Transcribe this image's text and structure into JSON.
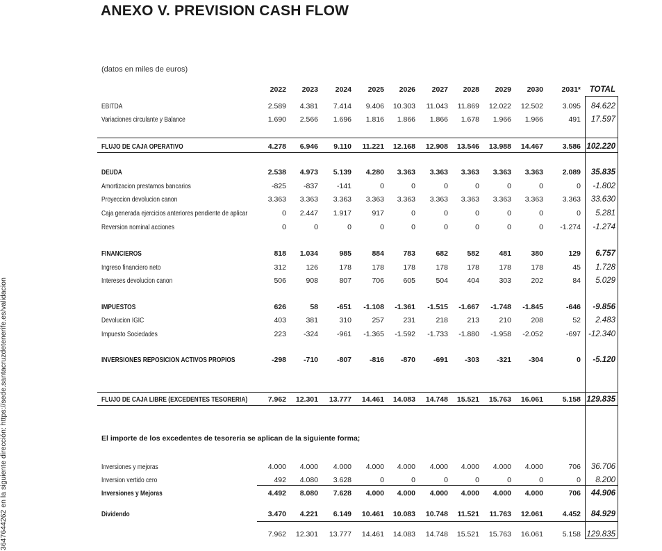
{
  "title": "ANEXO V. PREVISION CASH FLOW",
  "subtitle": "(datos en miles de euros)",
  "watermark": "3647644262 en la siguiente dirección: https://sede.santacruzdetenerife.es/validacion",
  "years": [
    "2022",
    "2023",
    "2024",
    "2025",
    "2026",
    "2027",
    "2028",
    "2029",
    "2030",
    "2031*"
  ],
  "total_header": "TOTAL",
  "note": "El importe de los excedentes de tesoreria se aplican de la siguiente forma;",
  "rows": [
    {
      "label": "EBITDA",
      "values": [
        "2.589",
        "4.381",
        "7.414",
        "9.406",
        "10.303",
        "11.043",
        "11.869",
        "12.022",
        "12.502",
        "3.095"
      ],
      "total": "84.622",
      "bold": false
    },
    {
      "label": "Variaciones circulante y Balance",
      "values": [
        "1.690",
        "2.566",
        "1.696",
        "1.816",
        "1.866",
        "1.866",
        "1.678",
        "1.966",
        "1.966",
        "491"
      ],
      "total": "17.597",
      "bold": false
    },
    {
      "label": "FLUJO DE CAJA OPERATIVO",
      "values": [
        "4.278",
        "6.946",
        "9.110",
        "11.221",
        "12.168",
        "12.908",
        "13.546",
        "13.988",
        "14.467",
        "3.586"
      ],
      "total": "102.220",
      "bold": true
    },
    {
      "label": "DEUDA",
      "values": [
        "2.538",
        "4.973",
        "5.139",
        "4.280",
        "3.363",
        "3.363",
        "3.363",
        "3.363",
        "3.363",
        "2.089"
      ],
      "total": "35.835",
      "bold": true
    },
    {
      "label": "Amortizacion prestamos bancarios",
      "values": [
        "-825",
        "-837",
        "-141",
        "0",
        "0",
        "0",
        "0",
        "0",
        "0",
        "0"
      ],
      "total": "-1.802",
      "bold": false
    },
    {
      "label": "Proyeccion devolucion canon",
      "values": [
        "3.363",
        "3.363",
        "3.363",
        "3.363",
        "3.363",
        "3.363",
        "3.363",
        "3.363",
        "3.363",
        "3.363"
      ],
      "total": "33.630",
      "bold": false
    },
    {
      "label": "Caja generada ejercicios anteriores pendiente de aplicar",
      "values": [
        "0",
        "2.447",
        "1.917",
        "917",
        "0",
        "0",
        "0",
        "0",
        "0",
        "0"
      ],
      "total": "5.281",
      "bold": false
    },
    {
      "label": "Reversion nominal acciones",
      "values": [
        "0",
        "0",
        "0",
        "0",
        "0",
        "0",
        "0",
        "0",
        "0",
        "-1.274"
      ],
      "total": "-1.274",
      "bold": false
    },
    {
      "label": "FINANCIEROS",
      "values": [
        "818",
        "1.034",
        "985",
        "884",
        "783",
        "682",
        "582",
        "481",
        "380",
        "129"
      ],
      "total": "6.757",
      "bold": true
    },
    {
      "label": "Ingreso financiero neto",
      "values": [
        "312",
        "126",
        "178",
        "178",
        "178",
        "178",
        "178",
        "178",
        "178",
        "45"
      ],
      "total": "1.728",
      "bold": false
    },
    {
      "label": "Intereses devolucion canon",
      "values": [
        "506",
        "908",
        "807",
        "706",
        "605",
        "504",
        "404",
        "303",
        "202",
        "84"
      ],
      "total": "5.029",
      "bold": false
    },
    {
      "label": "IMPUESTOS",
      "values": [
        "626",
        "58",
        "-651",
        "-1.108",
        "-1.361",
        "-1.515",
        "-1.667",
        "-1.748",
        "-1.845",
        "-646"
      ],
      "total": "-9.856",
      "bold": true
    },
    {
      "label": "Devolucion IGIC",
      "values": [
        "403",
        "381",
        "310",
        "257",
        "231",
        "218",
        "213",
        "210",
        "208",
        "52"
      ],
      "total": "2.483",
      "bold": false
    },
    {
      "label": "Impuesto Sociedades",
      "values": [
        "223",
        "-324",
        "-961",
        "-1.365",
        "-1.592",
        "-1.733",
        "-1.880",
        "-1.958",
        "-2.052",
        "-697"
      ],
      "total": "-12.340",
      "bold": false
    },
    {
      "label": "INVERSIONES REPOSICION ACTIVOS PROPIOS",
      "values": [
        "-298",
        "-710",
        "-807",
        "-816",
        "-870",
        "-691",
        "-303",
        "-321",
        "-304",
        "0"
      ],
      "total": "-5.120",
      "bold": true
    },
    {
      "label": "FLUJO DE CAJA LIBRE (EXCEDENTES TESORERIA)",
      "values": [
        "7.962",
        "12.301",
        "13.777",
        "14.461",
        "14.083",
        "14.748",
        "15.521",
        "15.763",
        "16.061",
        "5.158"
      ],
      "total": "129.835",
      "bold": true
    },
    {
      "label": "Inversiones y mejoras",
      "values": [
        "4.000",
        "4.000",
        "4.000",
        "4.000",
        "4.000",
        "4.000",
        "4.000",
        "4.000",
        "4.000",
        "706"
      ],
      "total": "36.706",
      "bold": false
    },
    {
      "label": "Inversion vertido cero",
      "values": [
        "492",
        "4.080",
        "3.628",
        "0",
        "0",
        "0",
        "0",
        "0",
        "0",
        "0"
      ],
      "total": "8.200",
      "bold": false
    },
    {
      "label": "Inversiones y Mejoras",
      "values": [
        "4.492",
        "8.080",
        "7.628",
        "4.000",
        "4.000",
        "4.000",
        "4.000",
        "4.000",
        "4.000",
        "706"
      ],
      "total": "44.906",
      "bold": true
    },
    {
      "label": "Dividendo",
      "values": [
        "3.470",
        "4.221",
        "6.149",
        "10.461",
        "10.083",
        "10.748",
        "11.521",
        "11.763",
        "12.061",
        "4.452"
      ],
      "total": "84.929",
      "bold": true
    },
    {
      "label": "",
      "values": [
        "7.962",
        "12.301",
        "13.777",
        "14.461",
        "14.083",
        "14.748",
        "15.521",
        "15.763",
        "16.061",
        "5.158"
      ],
      "total": "129.835",
      "bold": false
    }
  ]
}
